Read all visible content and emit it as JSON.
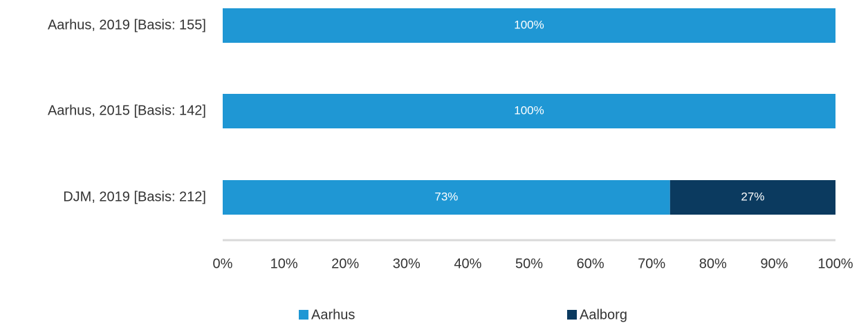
{
  "chart_data": {
    "type": "stacked_barh",
    "categories": [
      "Aarhus, 2019 [Basis: 155]",
      "Aarhus, 2015 [Basis: 142]",
      "DJM, 2019 [Basis: 212]"
    ],
    "series": [
      {
        "name": "Aarhus",
        "color": "#1f97d4",
        "values": [
          100,
          100,
          73
        ],
        "value_labels": [
          "100%",
          "100%",
          "73%"
        ]
      },
      {
        "name": "Aalborg",
        "color": "#0b3a5f",
        "values": [
          0,
          0,
          27
        ],
        "value_labels": [
          null,
          null,
          "27%"
        ]
      }
    ],
    "xlim": [
      0,
      100
    ],
    "xticks": [
      {
        "value": 0,
        "label": "0%"
      },
      {
        "value": 10,
        "label": "10%"
      },
      {
        "value": 20,
        "label": "20%"
      },
      {
        "value": 30,
        "label": "30%"
      },
      {
        "value": 40,
        "label": "40%"
      },
      {
        "value": 50,
        "label": "50%"
      },
      {
        "value": 60,
        "label": "60%"
      },
      {
        "value": 70,
        "label": "70%"
      },
      {
        "value": 80,
        "label": "80%"
      },
      {
        "value": 90,
        "label": "90%"
      },
      {
        "value": 100,
        "label": "100%"
      }
    ],
    "legend": "bottom"
  }
}
